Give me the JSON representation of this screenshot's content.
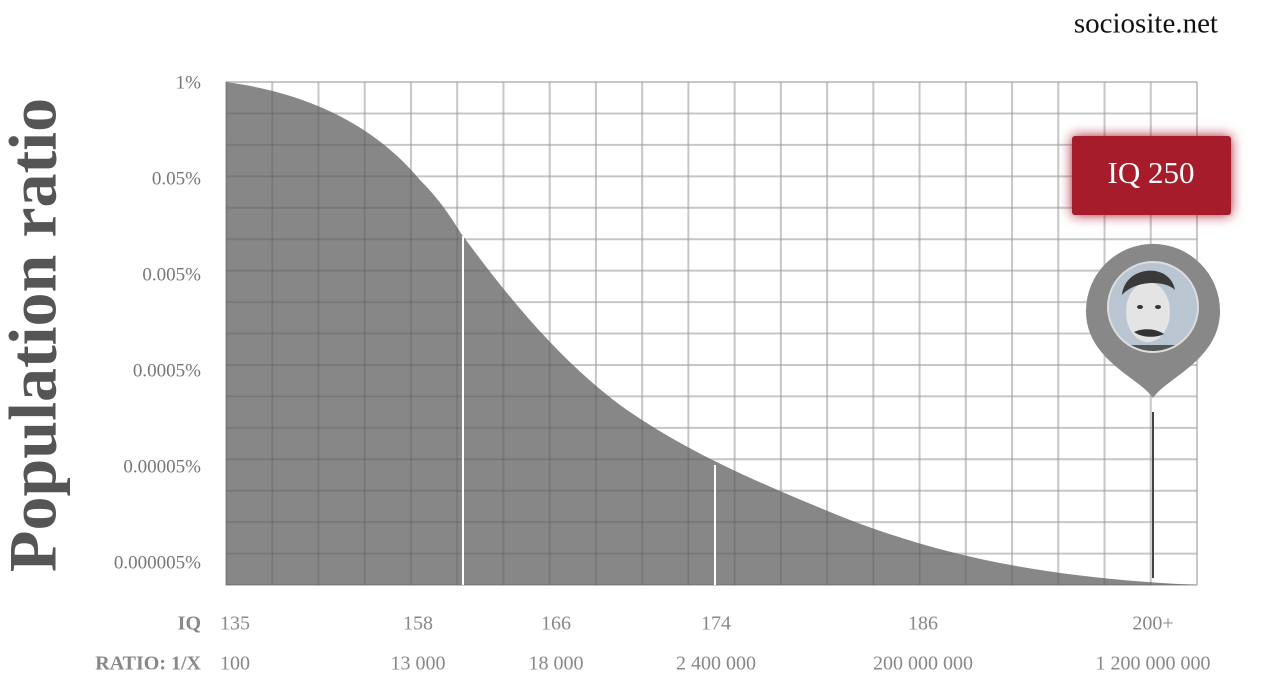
{
  "site": "sociosite.net",
  "y_axis": {
    "title": "Population ratio",
    "tick_labels": [
      "1%",
      "0.05%",
      "0.005%",
      "0.0005%",
      "0.00005%",
      "0.000005%"
    ]
  },
  "x_rows": [
    {
      "label": "IQ",
      "values": [
        "135",
        "158",
        "166",
        "174",
        "186",
        "200+"
      ]
    },
    {
      "label": "RATIO: 1/X",
      "values": [
        "100",
        "13 000",
        "18 000",
        "2 400 000",
        "200 000 000",
        "1 200 000 000"
      ]
    }
  ],
  "marker_label": "IQ 250"
}
